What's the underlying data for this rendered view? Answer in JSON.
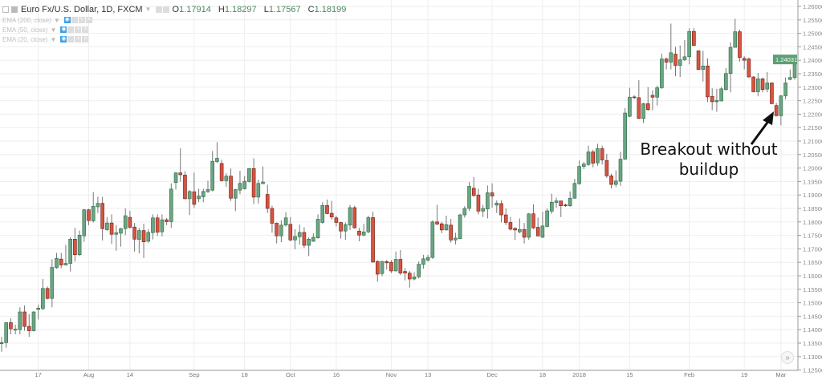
{
  "legend": {
    "title": "Euro Fx/U.S. Dollar, 1D, FXCM",
    "ohlc": {
      "o_label": "O",
      "o": "1.17914",
      "h_label": "H",
      "h": "1.18297",
      "l_label": "L",
      "l": "1.17567",
      "c_label": "C",
      "c": "1.18199"
    },
    "indicators": [
      {
        "label": "EMA (200, close)"
      },
      {
        "label": "EMA (50, close)"
      },
      {
        "label": "EMA (20, close)"
      }
    ]
  },
  "annotation": {
    "line1": "Breakout without",
    "line2": "buildup"
  },
  "scroll_button": {
    "label": "»"
  },
  "colors": {
    "up": "#6ba583",
    "up_border": "#2d6b45",
    "down": "#d75442",
    "down_border": "#6b1f15",
    "wick": "#777",
    "grid": "#eeeeee",
    "last_price_bg": "#5d9e73"
  },
  "chart_data": {
    "type": "candlestick",
    "ylim": [
      1.125,
      1.26
    ],
    "ytick_step": 0.005,
    "ytick_labels": [
      "1.26000",
      "1.25500",
      "1.25000",
      "1.24500",
      "1.24000",
      "1.23500",
      "1.23000",
      "1.22500",
      "1.22000",
      "1.21500",
      "1.21000",
      "1.20500",
      "1.20000",
      "1.19500",
      "1.19000",
      "1.18500",
      "1.18000",
      "1.17500",
      "1.17000",
      "1.16500",
      "1.16000",
      "1.15500",
      "1.15000",
      "1.14500",
      "1.14000",
      "1.13500",
      "1.13000",
      "1.12500"
    ],
    "last_price": "1.24031",
    "xticks": [
      {
        "label": "17",
        "bar": 8
      },
      {
        "label": "Aug",
        "bar": 19
      },
      {
        "label": "14",
        "bar": 28
      },
      {
        "label": "Sep",
        "bar": 42
      },
      {
        "label": "18",
        "bar": 53
      },
      {
        "label": "Oct",
        "bar": 63
      },
      {
        "label": "16",
        "bar": 73
      },
      {
        "label": "Nov",
        "bar": 85
      },
      {
        "label": "13",
        "bar": 93
      },
      {
        "label": "Dec",
        "bar": 107
      },
      {
        "label": "18",
        "bar": 118
      },
      {
        "label": "2018",
        "bar": 126
      },
      {
        "label": "15",
        "bar": 137
      },
      {
        "label": "Feb",
        "bar": 150
      },
      {
        "label": "19",
        "bar": 162
      },
      {
        "label": "Mar",
        "bar": 170
      }
    ],
    "ohlc": [
      [
        1.1348,
        1.1373,
        1.1318,
        1.1352
      ],
      [
        1.1352,
        1.1428,
        1.1333,
        1.1426
      ],
      [
        1.1426,
        1.1442,
        1.1383,
        1.1403
      ],
      [
        1.1398,
        1.1418,
        1.1383,
        1.1402
      ],
      [
        1.14,
        1.1483,
        1.1383,
        1.1466
      ],
      [
        1.1466,
        1.149,
        1.1396,
        1.1412
      ],
      [
        1.1412,
        1.1458,
        1.1373,
        1.1396
      ],
      [
        1.1396,
        1.1468,
        1.1393,
        1.1466
      ],
      [
        1.1475,
        1.1493,
        1.1438,
        1.148
      ],
      [
        1.1478,
        1.1588,
        1.1473,
        1.1553
      ],
      [
        1.1553,
        1.156,
        1.1512,
        1.1516
      ],
      [
        1.1516,
        1.1661,
        1.1483,
        1.1631
      ],
      [
        1.163,
        1.1685,
        1.1626,
        1.1665
      ],
      [
        1.1662,
        1.1685,
        1.1628,
        1.164
      ],
      [
        1.164,
        1.1715,
        1.1638,
        1.1646
      ],
      [
        1.1646,
        1.1743,
        1.1616,
        1.1736
      ],
      [
        1.1736,
        1.1778,
        1.1653,
        1.1678
      ],
      [
        1.1678,
        1.1768,
        1.1673,
        1.1751
      ],
      [
        1.1748,
        1.1848,
        1.1726,
        1.1845
      ],
      [
        1.1845,
        1.1848,
        1.1788,
        1.1805
      ],
      [
        1.1804,
        1.1911,
        1.1798,
        1.1858
      ],
      [
        1.1856,
        1.1894,
        1.1833,
        1.1869
      ],
      [
        1.1869,
        1.1893,
        1.1731,
        1.1775
      ],
      [
        1.1771,
        1.1818,
        1.1766,
        1.1796
      ],
      [
        1.1796,
        1.1828,
        1.1718,
        1.1754
      ],
      [
        1.1754,
        1.1788,
        1.1693,
        1.176
      ],
      [
        1.1758,
        1.1778,
        1.1708,
        1.1775
      ],
      [
        1.1775,
        1.185,
        1.1751,
        1.1823
      ],
      [
        1.1817,
        1.1841,
        1.1775,
        1.178
      ],
      [
        1.1781,
        1.1796,
        1.169,
        1.1736
      ],
      [
        1.1735,
        1.1778,
        1.1683,
        1.1768
      ],
      [
        1.1768,
        1.1793,
        1.1666,
        1.1726
      ],
      [
        1.1728,
        1.1773,
        1.1723,
        1.1761
      ],
      [
        1.176,
        1.1828,
        1.1735,
        1.1815
      ],
      [
        1.1815,
        1.1828,
        1.1748,
        1.1762
      ],
      [
        1.1763,
        1.1828,
        1.1746,
        1.1808
      ],
      [
        1.1808,
        1.1815,
        1.1788,
        1.1801
      ],
      [
        1.1801,
        1.1943,
        1.1778,
        1.1922
      ],
      [
        1.1946,
        1.1985,
        1.192,
        1.1982
      ],
      [
        1.1982,
        1.2073,
        1.195,
        1.1975
      ],
      [
        1.1974,
        1.1988,
        1.1884,
        1.1886
      ],
      [
        1.1886,
        1.1918,
        1.1826,
        1.1913
      ],
      [
        1.1912,
        1.1983,
        1.1852,
        1.1865
      ],
      [
        1.1886,
        1.1923,
        1.1873,
        1.1896
      ],
      [
        1.1893,
        1.1923,
        1.1873,
        1.1913
      ],
      [
        1.1912,
        1.1953,
        1.1908,
        1.192
      ],
      [
        1.1918,
        1.2063,
        1.1913,
        1.2025
      ],
      [
        1.2024,
        1.2096,
        1.2018,
        1.2036
      ],
      [
        1.2017,
        1.203,
        1.195,
        1.1953
      ],
      [
        1.1953,
        1.198,
        1.193,
        1.197
      ],
      [
        1.197,
        1.1998,
        1.1878,
        1.1888
      ],
      [
        1.1888,
        1.1923,
        1.184,
        1.192
      ],
      [
        1.1918,
        1.199,
        1.1903,
        1.1943
      ],
      [
        1.1923,
        1.197,
        1.192,
        1.1951
      ],
      [
        1.195,
        1.2,
        1.1946,
        1.1998
      ],
      [
        1.1998,
        1.2036,
        1.1866,
        1.1892
      ],
      [
        1.1892,
        1.1956,
        1.1868,
        1.1943
      ],
      [
        1.1942,
        1.2006,
        1.194,
        1.1948
      ],
      [
        1.1902,
        1.1938,
        1.1833,
        1.185
      ],
      [
        1.185,
        1.186,
        1.176,
        1.1795
      ],
      [
        1.1795,
        1.1798,
        1.172,
        1.1748
      ],
      [
        1.1748,
        1.1806,
        1.1725,
        1.1788
      ],
      [
        1.1788,
        1.1836,
        1.1783,
        1.1815
      ],
      [
        1.1791,
        1.1818,
        1.1728,
        1.1733
      ],
      [
        1.1733,
        1.1773,
        1.1698,
        1.1746
      ],
      [
        1.1745,
        1.179,
        1.1716,
        1.1761
      ],
      [
        1.1761,
        1.178,
        1.1703,
        1.1713
      ],
      [
        1.1713,
        1.1743,
        1.1673,
        1.1736
      ],
      [
        1.1728,
        1.1758,
        1.1726,
        1.1743
      ],
      [
        1.1741,
        1.1828,
        1.1738,
        1.181
      ],
      [
        1.1798,
        1.1873,
        1.1793,
        1.1861
      ],
      [
        1.1861,
        1.1883,
        1.1828,
        1.1831
      ],
      [
        1.1832,
        1.1878,
        1.1808,
        1.1818
      ],
      [
        1.1815,
        1.1823,
        1.1783,
        1.1798
      ],
      [
        1.1798,
        1.18,
        1.1738,
        1.1766
      ],
      [
        1.1766,
        1.1798,
        1.1733,
        1.179
      ],
      [
        1.1788,
        1.1863,
        1.177,
        1.1853
      ],
      [
        1.1853,
        1.186,
        1.1775,
        1.1778
      ],
      [
        1.1766,
        1.1778,
        1.1728,
        1.1751
      ],
      [
        1.1751,
        1.1793,
        1.1746,
        1.1763
      ],
      [
        1.1763,
        1.1823,
        1.1758,
        1.1816
      ],
      [
        1.1816,
        1.1838,
        1.1648,
        1.1651
      ],
      [
        1.1653,
        1.1658,
        1.1578,
        1.1606
      ],
      [
        1.1608,
        1.1656,
        1.1598,
        1.1653
      ],
      [
        1.1653,
        1.1658,
        1.1623,
        1.1648
      ],
      [
        1.165,
        1.1658,
        1.161,
        1.1618
      ],
      [
        1.1618,
        1.169,
        1.1616,
        1.1661
      ],
      [
        1.1661,
        1.1695,
        1.1603,
        1.161
      ],
      [
        1.1616,
        1.1628,
        1.1583,
        1.161
      ],
      [
        1.161,
        1.1618,
        1.1556,
        1.1588
      ],
      [
        1.1588,
        1.1613,
        1.1583,
        1.1596
      ],
      [
        1.1596,
        1.1653,
        1.159,
        1.1643
      ],
      [
        1.1642,
        1.1678,
        1.1626,
        1.1663
      ],
      [
        1.1658,
        1.1678,
        1.1653,
        1.1668
      ],
      [
        1.1668,
        1.1806,
        1.1663,
        1.18
      ],
      [
        1.18,
        1.1863,
        1.1788,
        1.1792
      ],
      [
        1.1793,
        1.18,
        1.1758,
        1.177
      ],
      [
        1.177,
        1.1823,
        1.1768,
        1.179
      ],
      [
        1.1788,
        1.1811,
        1.1723,
        1.1733
      ],
      [
        1.1733,
        1.176,
        1.1716,
        1.174
      ],
      [
        1.1738,
        1.183,
        1.1736,
        1.1826
      ],
      [
        1.1826,
        1.1858,
        1.1816,
        1.185
      ],
      [
        1.185,
        1.1948,
        1.184,
        1.1932
      ],
      [
        1.1925,
        1.1966,
        1.1893,
        1.1898
      ],
      [
        1.19,
        1.1923,
        1.1828,
        1.184
      ],
      [
        1.184,
        1.1863,
        1.1818,
        1.185
      ],
      [
        1.1848,
        1.1935,
        1.1813,
        1.1908
      ],
      [
        1.1908,
        1.1943,
        1.1853,
        1.1896
      ],
      [
        1.1862,
        1.188,
        1.1833,
        1.187
      ],
      [
        1.1868,
        1.188,
        1.1798,
        1.1826
      ],
      [
        1.1826,
        1.185,
        1.1788,
        1.1798
      ],
      [
        1.1798,
        1.1818,
        1.1768,
        1.1773
      ],
      [
        1.1776,
        1.178,
        1.1733,
        1.177
      ],
      [
        1.1763,
        1.1813,
        1.1758,
        1.1772
      ],
      [
        1.1772,
        1.1796,
        1.172,
        1.1743
      ],
      [
        1.1743,
        1.1833,
        1.1733,
        1.183
      ],
      [
        1.183,
        1.1865,
        1.1773,
        1.1778
      ],
      [
        1.178,
        1.1816,
        1.1746,
        1.1748
      ],
      [
        1.1743,
        1.1838,
        1.174,
        1.1785
      ],
      [
        1.1783,
        1.185,
        1.178,
        1.1841
      ],
      [
        1.184,
        1.1905,
        1.183,
        1.1873
      ],
      [
        1.1872,
        1.189,
        1.1853,
        1.1878
      ],
      [
        1.1878,
        1.1878,
        1.1818,
        1.186
      ],
      [
        1.1863,
        1.1868,
        1.1856,
        1.186
      ],
      [
        1.186,
        1.1913,
        1.1856,
        1.1888
      ],
      [
        1.1888,
        1.196,
        1.1886,
        1.1943
      ],
      [
        1.1942,
        1.2028,
        1.1938,
        1.2006
      ],
      [
        1.2006,
        1.2023,
        1.1996,
        1.2015
      ],
      [
        1.2013,
        1.2083,
        1.2008,
        1.206
      ],
      [
        1.206,
        1.2068,
        1.2003,
        1.2018
      ],
      [
        1.2019,
        1.209,
        1.2008,
        1.2072
      ],
      [
        1.2072,
        1.2083,
        1.2013,
        1.203
      ],
      [
        1.2028,
        1.2053,
        1.1964,
        1.1971
      ],
      [
        1.1971,
        1.1979,
        1.1924,
        1.1939
      ],
      [
        1.1939,
        1.1991,
        1.1929,
        1.1952
      ],
      [
        1.1951,
        1.206,
        1.1934,
        1.2033
      ],
      [
        1.2033,
        1.2222,
        1.203,
        1.2204
      ],
      [
        1.2192,
        1.2298,
        1.2189,
        1.2263
      ],
      [
        1.2264,
        1.2271,
        1.2256,
        1.2261
      ],
      [
        1.2261,
        1.2326,
        1.2182,
        1.2184
      ],
      [
        1.2184,
        1.2242,
        1.2167,
        1.2239
      ],
      [
        1.2239,
        1.2301,
        1.2212,
        1.2217
      ],
      [
        1.227,
        1.2288,
        1.2215,
        1.2263
      ],
      [
        1.2263,
        1.2306,
        1.2232,
        1.2298
      ],
      [
        1.2298,
        1.2425,
        1.2294,
        1.2405
      ],
      [
        1.2405,
        1.241,
        1.2366,
        1.2393
      ],
      [
        1.2393,
        1.2536,
        1.2366,
        1.2428
      ],
      [
        1.2423,
        1.245,
        1.2341,
        1.2381
      ],
      [
        1.2381,
        1.2455,
        1.2338,
        1.2402
      ],
      [
        1.2402,
        1.2475,
        1.2397,
        1.2413
      ],
      [
        1.2413,
        1.2519,
        1.2385,
        1.2507
      ],
      [
        1.2507,
        1.2519,
        1.2453,
        1.2455
      ],
      [
        1.2435,
        1.2437,
        1.2364,
        1.2366
      ],
      [
        1.2366,
        1.2435,
        1.2321,
        1.2379
      ],
      [
        1.2379,
        1.2407,
        1.2245,
        1.2264
      ],
      [
        1.2266,
        1.2296,
        1.2215,
        1.2246
      ],
      [
        1.2246,
        1.2294,
        1.2209,
        1.2251
      ],
      [
        1.2249,
        1.2301,
        1.2247,
        1.2294
      ],
      [
        1.2291,
        1.2371,
        1.2288,
        1.2351
      ],
      [
        1.2351,
        1.2467,
        1.2281,
        1.2448
      ],
      [
        1.2448,
        1.2554,
        1.2447,
        1.2506
      ],
      [
        1.2506,
        1.2514,
        1.2395,
        1.241
      ],
      [
        1.2407,
        1.2415,
        1.2366,
        1.24
      ],
      [
        1.2405,
        1.241,
        1.2336,
        1.2338
      ],
      [
        1.2338,
        1.2341,
        1.2281,
        1.2283
      ],
      [
        1.2283,
        1.2353,
        1.2266,
        1.2331
      ],
      [
        1.2331,
        1.2336,
        1.2281,
        1.2291
      ],
      [
        1.2293,
        1.2356,
        1.2281,
        1.2316
      ],
      [
        1.2316,
        1.2318,
        1.2237,
        1.2239
      ],
      [
        1.2232,
        1.2242,
        1.2192,
        1.2194
      ],
      [
        1.2194,
        1.2271,
        1.2159,
        1.2268
      ],
      [
        1.2268,
        1.2336,
        1.2255,
        1.2316
      ],
      [
        1.2329,
        1.2366,
        1.2326,
        1.2336
      ],
      [
        1.2336,
        1.242,
        1.2328,
        1.2403
      ]
    ]
  }
}
